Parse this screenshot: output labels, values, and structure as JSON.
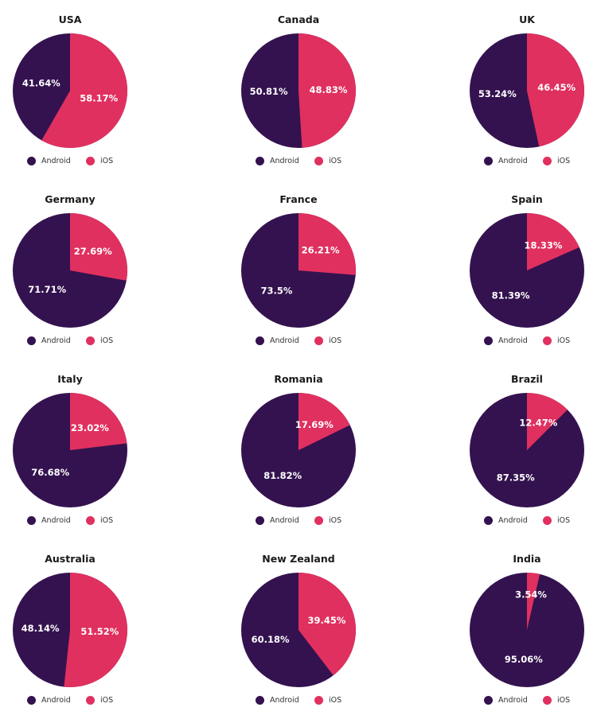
{
  "chart_data": {
    "type": "pie",
    "colors": {
      "android": "#34124f",
      "ios": "#e0305f"
    },
    "legend": [
      "Android",
      "iOS"
    ],
    "charts": [
      {
        "title": "USA",
        "slices": [
          {
            "name": "Android",
            "value": 41.64,
            "label": "41.64%"
          },
          {
            "name": "iOS",
            "value": 58.17,
            "label": "58.17%"
          }
        ]
      },
      {
        "title": "Canada",
        "slices": [
          {
            "name": "Android",
            "value": 50.81,
            "label": "50.81%"
          },
          {
            "name": "iOS",
            "value": 48.83,
            "label": "48.83%"
          }
        ]
      },
      {
        "title": "UK",
        "slices": [
          {
            "name": "Android",
            "value": 53.24,
            "label": "53.24%"
          },
          {
            "name": "iOS",
            "value": 46.45,
            "label": "46.45%"
          }
        ]
      },
      {
        "title": "Germany",
        "slices": [
          {
            "name": "Android",
            "value": 71.71,
            "label": "71.71%"
          },
          {
            "name": "iOS",
            "value": 27.69,
            "label": "27.69%"
          }
        ]
      },
      {
        "title": "France",
        "slices": [
          {
            "name": "Android",
            "value": 73.5,
            "label": "73.5%"
          },
          {
            "name": "iOS",
            "value": 26.21,
            "label": "26.21%"
          }
        ]
      },
      {
        "title": "Spain",
        "slices": [
          {
            "name": "Android",
            "value": 81.39,
            "label": "81.39%"
          },
          {
            "name": "iOS",
            "value": 18.33,
            "label": "18.33%"
          }
        ]
      },
      {
        "title": "Italy",
        "slices": [
          {
            "name": "Android",
            "value": 76.68,
            "label": "76.68%"
          },
          {
            "name": "iOS",
            "value": 23.02,
            "label": "23.02%"
          }
        ]
      },
      {
        "title": "Romania",
        "slices": [
          {
            "name": "Android",
            "value": 81.82,
            "label": "81.82%"
          },
          {
            "name": "iOS",
            "value": 17.69,
            "label": "17.69%"
          }
        ]
      },
      {
        "title": "Brazil",
        "slices": [
          {
            "name": "Android",
            "value": 87.35,
            "label": "87.35%"
          },
          {
            "name": "iOS",
            "value": 12.47,
            "label": "12.47%"
          }
        ]
      },
      {
        "title": "Australia",
        "slices": [
          {
            "name": "Android",
            "value": 48.14,
            "label": "48.14%"
          },
          {
            "name": "iOS",
            "value": 51.52,
            "label": "51.52%"
          }
        ]
      },
      {
        "title": "New Zealand",
        "slices": [
          {
            "name": "Android",
            "value": 60.18,
            "label": "60.18%"
          },
          {
            "name": "iOS",
            "value": 39.45,
            "label": "39.45%"
          }
        ]
      },
      {
        "title": "India",
        "slices": [
          {
            "name": "Android",
            "value": 95.06,
            "label": "95.06%"
          },
          {
            "name": "iOS",
            "value": 3.54,
            "label": "3.54%"
          }
        ]
      }
    ]
  }
}
